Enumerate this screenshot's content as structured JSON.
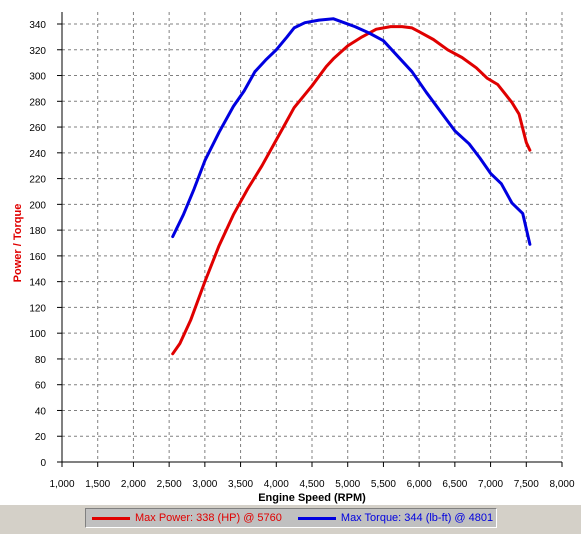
{
  "chart_data": {
    "type": "line",
    "xlabel": "Engine Speed (RPM)",
    "ylabel": "Power / Torque",
    "xlim": [
      1000,
      8000
    ],
    "ylim": [
      0,
      340
    ],
    "x_ticks": [
      "1,000",
      "1,500",
      "2,000",
      "2,500",
      "3,000",
      "3,500",
      "4,000",
      "4,500",
      "5,000",
      "5,500",
      "6,000",
      "6,500",
      "7,000",
      "7,500",
      "8,000"
    ],
    "y_ticks": [
      "0",
      "20",
      "40",
      "60",
      "80",
      "100",
      "120",
      "140",
      "160",
      "180",
      "200",
      "220",
      "240",
      "260",
      "280",
      "300",
      "320",
      "340"
    ],
    "grid": true,
    "legend_position": "bottom",
    "series": [
      {
        "name": "Max Power: 338 (HP) @ 5760",
        "color": "#e00000",
        "points": [
          [
            2550,
            84
          ],
          [
            2650,
            92
          ],
          [
            2800,
            110
          ],
          [
            3000,
            140
          ],
          [
            3200,
            168
          ],
          [
            3400,
            192
          ],
          [
            3600,
            212
          ],
          [
            3800,
            230
          ],
          [
            4000,
            250
          ],
          [
            4100,
            260
          ],
          [
            4250,
            275
          ],
          [
            4500,
            292
          ],
          [
            4700,
            307
          ],
          [
            4800,
            313
          ],
          [
            5000,
            323
          ],
          [
            5200,
            330
          ],
          [
            5400,
            336
          ],
          [
            5600,
            338
          ],
          [
            5760,
            338
          ],
          [
            5900,
            337
          ],
          [
            6000,
            334
          ],
          [
            6200,
            328
          ],
          [
            6400,
            320
          ],
          [
            6600,
            314
          ],
          [
            6800,
            306
          ],
          [
            6950,
            298
          ],
          [
            7100,
            293
          ],
          [
            7200,
            286
          ],
          [
            7300,
            279
          ],
          [
            7400,
            270
          ],
          [
            7500,
            248
          ],
          [
            7550,
            242
          ]
        ]
      },
      {
        "name": "Max Torque: 344 (lb-ft) @ 4801",
        "color": "#0000e0",
        "points": [
          [
            2550,
            175
          ],
          [
            2700,
            192
          ],
          [
            2850,
            212
          ],
          [
            3000,
            234
          ],
          [
            3200,
            256
          ],
          [
            3400,
            276
          ],
          [
            3550,
            288
          ],
          [
            3700,
            303
          ],
          [
            3850,
            312
          ],
          [
            4000,
            320
          ],
          [
            4150,
            330
          ],
          [
            4250,
            337
          ],
          [
            4400,
            341
          ],
          [
            4600,
            343
          ],
          [
            4801,
            344
          ],
          [
            4950,
            341
          ],
          [
            5100,
            338
          ],
          [
            5300,
            333
          ],
          [
            5500,
            327
          ],
          [
            5700,
            315
          ],
          [
            5900,
            303
          ],
          [
            6100,
            287
          ],
          [
            6300,
            272
          ],
          [
            6500,
            257
          ],
          [
            6700,
            247
          ],
          [
            6850,
            236
          ],
          [
            7000,
            224
          ],
          [
            7150,
            216
          ],
          [
            7300,
            201
          ],
          [
            7450,
            193
          ],
          [
            7550,
            169
          ]
        ]
      }
    ]
  }
}
